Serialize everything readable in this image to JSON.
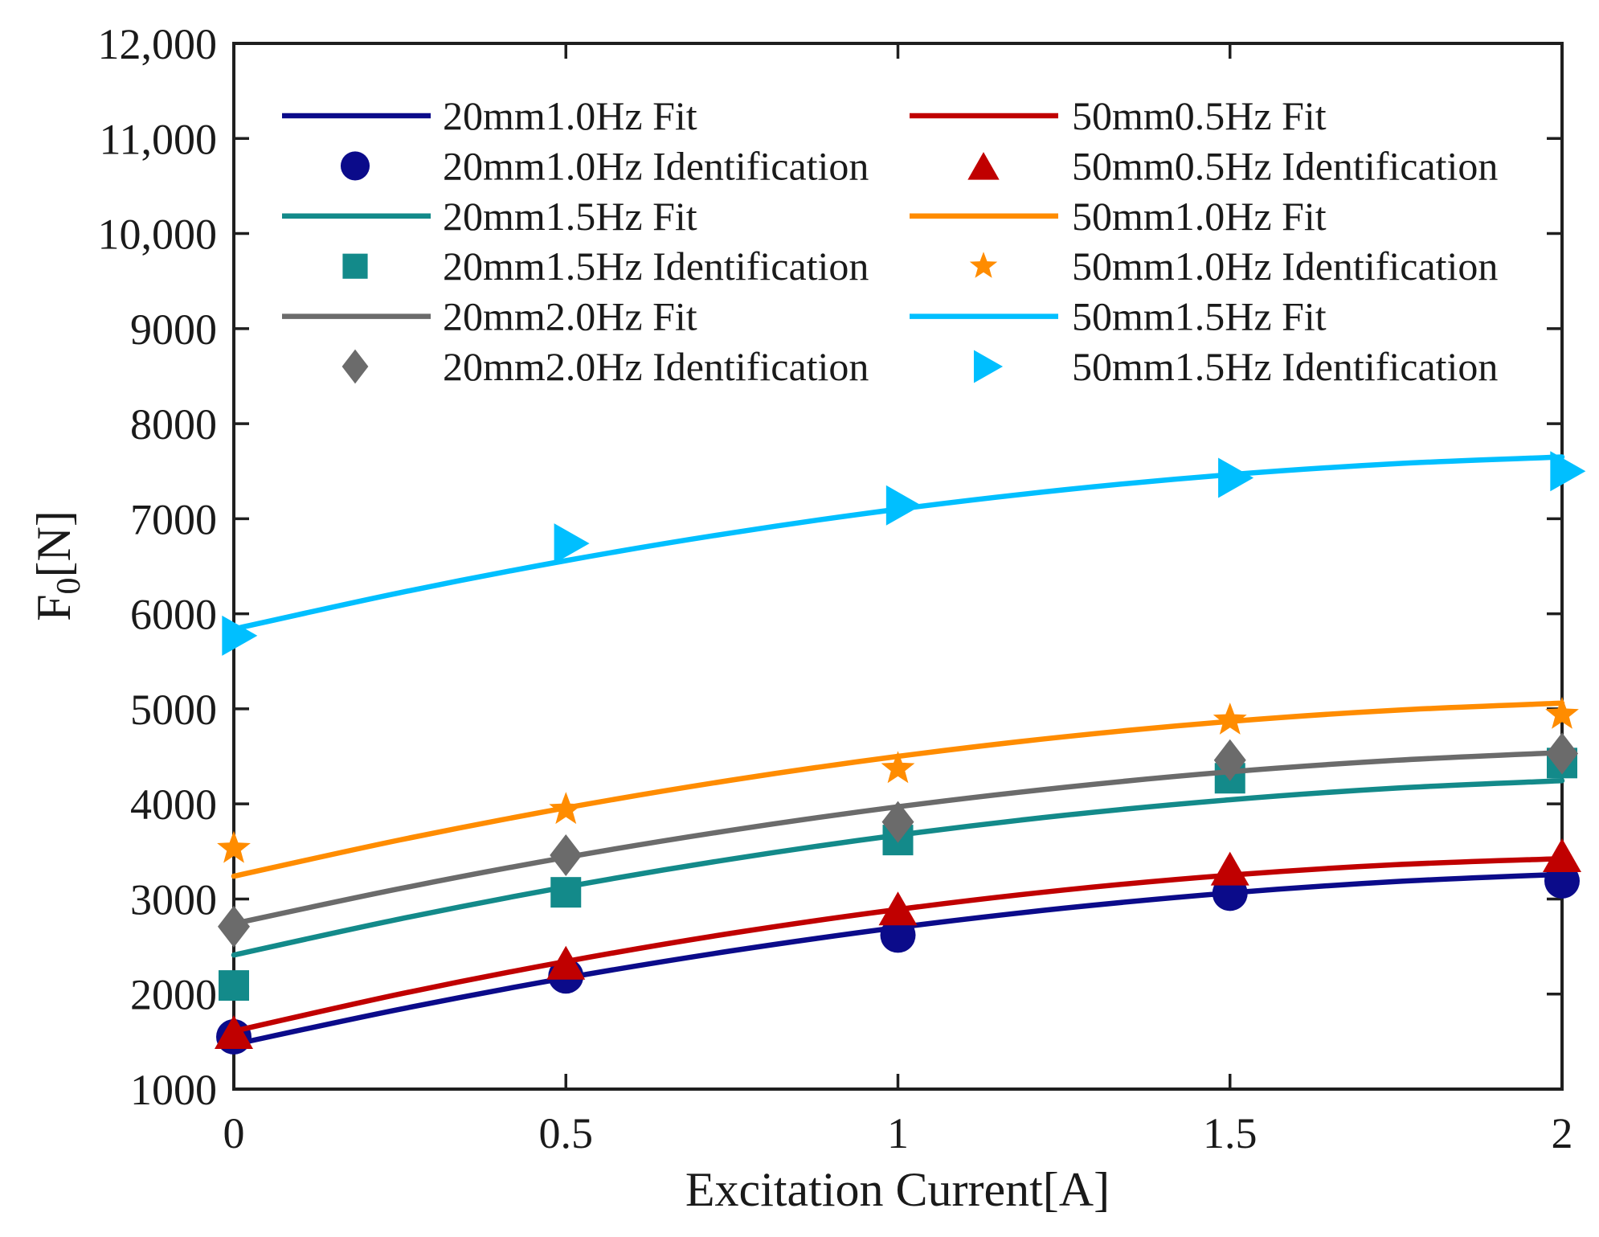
{
  "chart_data": {
    "type": "line",
    "xlabel": "Excitation Current[A]",
    "ylabel": {
      "base": "F",
      "subscript": "0",
      "unit": "[N]"
    },
    "xlim": [
      0,
      2
    ],
    "ylim": [
      1000,
      12000
    ],
    "xticks": [
      0,
      0.5,
      1,
      1.5,
      2
    ],
    "xtick_labels": [
      "0",
      "0.5",
      "1",
      "1.5",
      "2"
    ],
    "yticks": [
      1000,
      2000,
      3000,
      4000,
      5000,
      6000,
      7000,
      8000,
      9000,
      10000,
      11000,
      12000
    ],
    "ytick_labels": [
      "1000",
      "2000",
      "3000",
      "4000",
      "5000",
      "6000",
      "7000",
      "8000",
      "9000",
      "10,000",
      "11,000",
      "12,000"
    ],
    "grid": false,
    "legend": {
      "location": "top",
      "columns": 2
    },
    "series": [
      {
        "name": "20mm1.0Hz Fit",
        "color": "#0b0b8a",
        "x": [
          0,
          0.25,
          0.5,
          0.75,
          1,
          1.25,
          1.5,
          1.75,
          2
        ],
        "y": [
          1470,
          1840,
          2169,
          2455,
          2700,
          2903,
          3064,
          3183,
          3260
        ]
      },
      {
        "name": "20mm1.0Hz Identification",
        "color": "#0b0b8a",
        "marker": "circle",
        "x": [
          0,
          0.5,
          1,
          1.5,
          2
        ],
        "y": [
          1550,
          2190,
          2620,
          3060,
          3190
        ]
      },
      {
        "name": "20mm1.5Hz Fit",
        "color": "#138a8a",
        "x": [
          0,
          0.25,
          0.5,
          0.75,
          1,
          1.25,
          1.5,
          1.75,
          2
        ],
        "y": [
          2410,
          2790,
          3127,
          3421,
          3672,
          3880,
          4044,
          4166,
          4244
        ]
      },
      {
        "name": "20mm1.5Hz Identification",
        "color": "#138a8a",
        "marker": "square",
        "x": [
          0,
          0.5,
          1,
          1.5,
          2
        ],
        "y": [
          2090,
          3070,
          3620,
          4270,
          4430
        ]
      },
      {
        "name": "20mm2.0Hz Fit",
        "color": "#6b6b6b",
        "x": [
          0,
          0.25,
          0.5,
          0.75,
          1,
          1.25,
          1.5,
          1.75,
          2
        ],
        "y": [
          2740,
          3109,
          3438,
          3724,
          3970,
          4174,
          4338,
          4459,
          4540
        ]
      },
      {
        "name": "20mm2.0Hz Identification",
        "color": "#6b6b6b",
        "marker": "diamond",
        "x": [
          0,
          0.5,
          1,
          1.5,
          2
        ],
        "y": [
          2710,
          3460,
          3810,
          4460,
          4530
        ]
      },
      {
        "name": "50mm0.5Hz Fit",
        "color": "#c00000",
        "x": [
          0,
          0.25,
          0.5,
          0.75,
          1,
          1.25,
          1.5,
          1.75,
          2
        ],
        "y": [
          1610,
          2000,
          2343,
          2640,
          2890,
          3094,
          3251,
          3361,
          3425
        ]
      },
      {
        "name": "50mm0.5Hz Identification",
        "color": "#c00000",
        "marker": "triangle-up",
        "x": [
          0,
          0.5,
          1,
          1.5,
          2
        ],
        "y": [
          1600,
          2330,
          2900,
          3320,
          3460
        ]
      },
      {
        "name": "50mm1.0Hz Fit",
        "color": "#ff8c00",
        "x": [
          0,
          0.25,
          0.5,
          0.75,
          1,
          1.25,
          1.5,
          1.75,
          2
        ],
        "y": [
          3240,
          3621,
          3958,
          4251,
          4500,
          4706,
          4868,
          4986,
          5060
        ]
      },
      {
        "name": "50mm1.0Hz Identification",
        "color": "#ff8c00",
        "marker": "star",
        "x": [
          0,
          0.5,
          1,
          1.5,
          2
        ],
        "y": [
          3530,
          3940,
          4370,
          4880,
          4940
        ]
      },
      {
        "name": "50mm1.5Hz Fit",
        "color": "#00bfff",
        "x": [
          0,
          0.25,
          0.5,
          0.75,
          1,
          1.25,
          1.5,
          1.75,
          2
        ],
        "y": [
          5840,
          6222,
          6559,
          6852,
          7100,
          7304,
          7464,
          7579,
          7650
        ]
      },
      {
        "name": "50mm1.5Hz Identification",
        "color": "#00bfff",
        "marker": "triangle-right",
        "x": [
          0,
          0.5,
          1,
          1.5,
          2
        ],
        "y": [
          5770,
          6740,
          7140,
          7430,
          7500
        ]
      }
    ]
  }
}
